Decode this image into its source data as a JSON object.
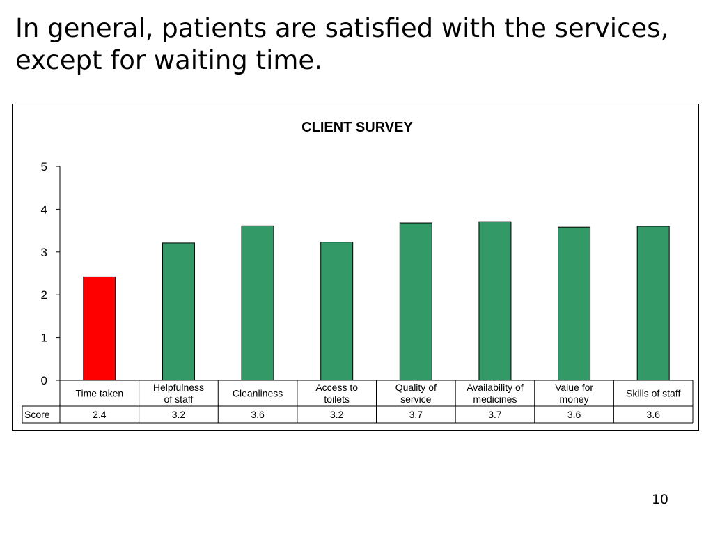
{
  "slide": {
    "title": "In general, patients are satisfied with the services, except for waiting time.",
    "page_number": "10"
  },
  "chart_data": {
    "type": "bar",
    "title": "CLIENT SURVEY",
    "xlabel": "",
    "ylabel": "",
    "ylim": [
      0,
      5
    ],
    "yticks": [
      0,
      1,
      2,
      3,
      4,
      5
    ],
    "grid": false,
    "categories": [
      [
        "Time taken"
      ],
      [
        "Helpfulness",
        "of staff"
      ],
      [
        "Cleanliness"
      ],
      [
        "Access to",
        "toilets"
      ],
      [
        "Quality of",
        "service"
      ],
      [
        "Availability of",
        "medicines"
      ],
      [
        "Value for",
        "money"
      ],
      [
        "Skills of staff"
      ]
    ],
    "series": [
      {
        "name": "Score",
        "values": [
          2.42,
          3.21,
          3.61,
          3.23,
          3.68,
          3.71,
          3.58,
          3.6
        ],
        "value_labels": [
          "2.4",
          "3.2",
          "3.6",
          "3.2",
          "3.7",
          "3.7",
          "3.6",
          "3.6"
        ]
      }
    ],
    "colors": {
      "bar_default": "#339966",
      "bar_highlight": "#ff0000",
      "highlight_index": 0
    }
  }
}
